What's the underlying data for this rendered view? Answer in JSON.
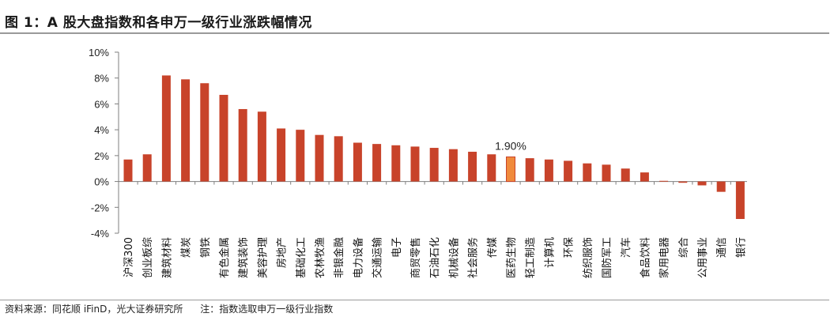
{
  "figure": {
    "title": "图 1：A 股大盘指数和各申万一级行业涨跌幅情况",
    "source": "资料来源：同花顺 iFinD，光大证券研究所",
    "note": "注：指数选取申万一级行业指数"
  },
  "colors": {
    "bar": "#c8432a",
    "highlight": "#f08a3c",
    "axis": "#7f7f7f"
  },
  "chart_data": {
    "type": "bar",
    "categories": [
      "沪深300",
      "创业板综",
      "建筑材料",
      "煤炭",
      "钢铁",
      "有色金属",
      "建筑装饰",
      "美容护理",
      "房地产",
      "基础化工",
      "农林牧渔",
      "非银金融",
      "电力设备",
      "交通运输",
      "电子",
      "商贸零售",
      "石油石化",
      "机械设备",
      "社会服务",
      "传媒",
      "医药生物",
      "轻工制造",
      "计算机",
      "环保",
      "纺织服饰",
      "国防军工",
      "汽车",
      "食品饮料",
      "家用电器",
      "综合",
      "公用事业",
      "通信",
      "银行"
    ],
    "values": [
      1.7,
      2.1,
      8.2,
      7.9,
      7.6,
      6.7,
      5.6,
      5.4,
      4.1,
      4.0,
      3.6,
      3.5,
      3.0,
      2.9,
      2.8,
      2.7,
      2.6,
      2.5,
      2.3,
      2.1,
      1.9,
      1.8,
      1.7,
      1.6,
      1.4,
      1.3,
      1.0,
      0.7,
      0.05,
      -0.1,
      -0.3,
      -0.8,
      -2.9
    ],
    "highlight_index": 20,
    "data_labels": [
      {
        "index": 20,
        "text": "1.90%"
      }
    ],
    "ylim": [
      -4,
      10
    ],
    "yticks": [
      10,
      8,
      6,
      4,
      2,
      0,
      -2,
      -4
    ],
    "ytick_labels": [
      "10%",
      "8%",
      "6%",
      "4%",
      "2%",
      "0%",
      "-2%",
      "-4%"
    ],
    "grid": false,
    "legend": "none"
  }
}
